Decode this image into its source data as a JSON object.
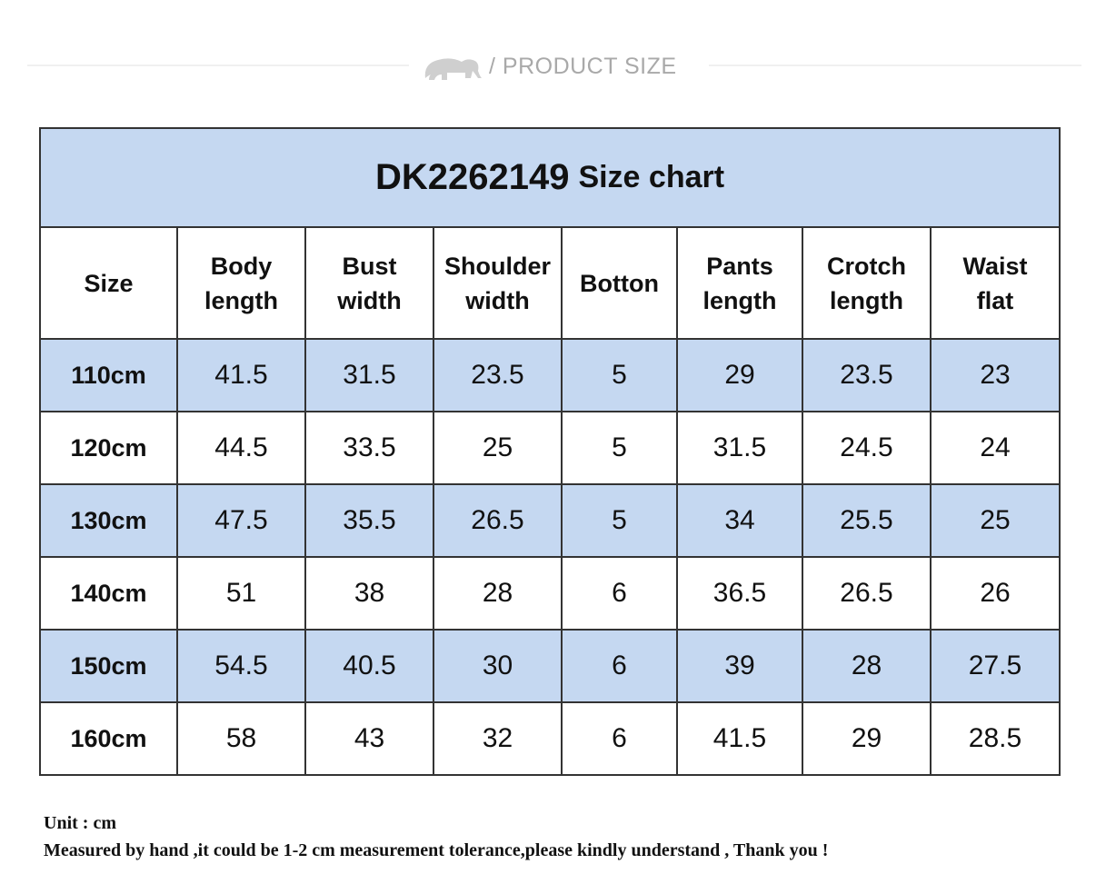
{
  "banner": {
    "logo_icon": "elephant-icon",
    "title": "/ PRODUCT SIZE"
  },
  "chart": {
    "model": "DK2262149",
    "subtitle": "Size chart",
    "headers": [
      [
        "Size"
      ],
      [
        "Body",
        "length"
      ],
      [
        "Bust",
        "width"
      ],
      [
        "Shoulder",
        "width"
      ],
      [
        "Botton"
      ],
      [
        "Pants",
        "length"
      ],
      [
        "Crotch",
        "length"
      ],
      [
        "Waist",
        "flat"
      ]
    ],
    "rows": [
      [
        "110cm",
        "41.5",
        "31.5",
        "23.5",
        "5",
        "29",
        "23.5",
        "23"
      ],
      [
        "120cm",
        "44.5",
        "33.5",
        "25",
        "5",
        "31.5",
        "24.5",
        "24"
      ],
      [
        "130cm",
        "47.5",
        "35.5",
        "26.5",
        "5",
        "34",
        "25.5",
        "25"
      ],
      [
        "140cm",
        "51",
        "38",
        "28",
        "6",
        "36.5",
        "26.5",
        "26"
      ],
      [
        "150cm",
        "54.5",
        "40.5",
        "30",
        "6",
        "39",
        "28",
        "27.5"
      ],
      [
        "160cm",
        "58",
        "43",
        "32",
        "6",
        "41.5",
        "29",
        "28.5"
      ]
    ]
  },
  "notes": {
    "unit": "Unit : cm",
    "tolerance": "Measured by hand ,it could be 1-2 cm measurement tolerance,please kindly understand , Thank you !"
  },
  "colors": {
    "header_blue": "#c5d8f1",
    "border": "#333333",
    "banner_text": "#a9a9a9"
  }
}
